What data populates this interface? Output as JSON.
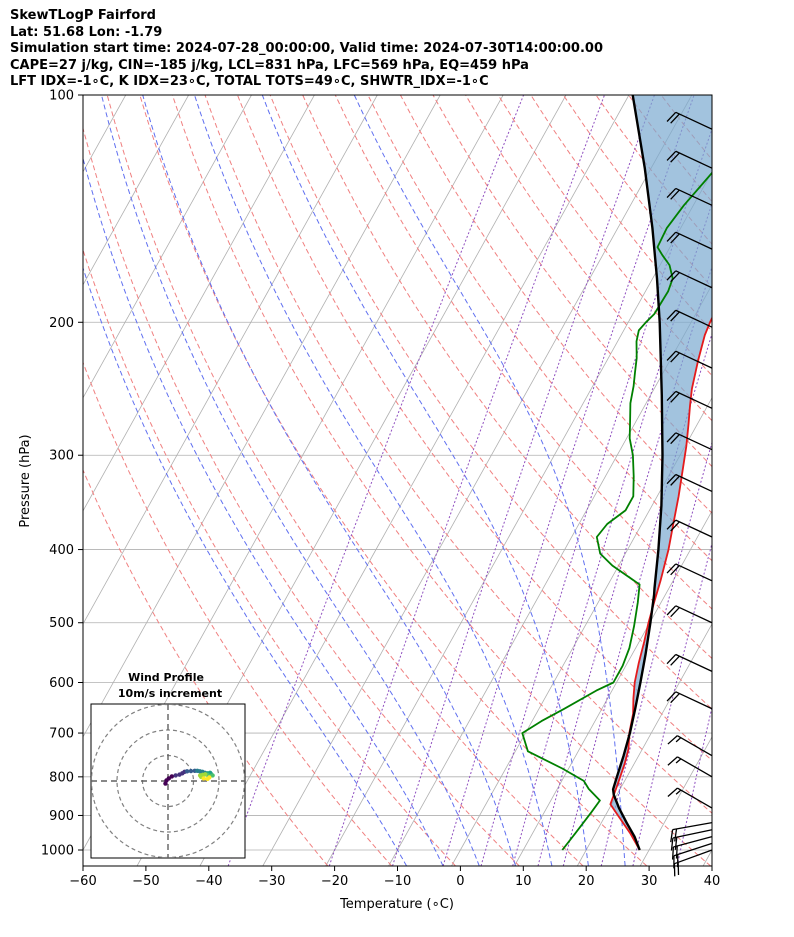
{
  "header": {
    "lines": [
      "SkewTLogP Fairford",
      "Lat: 51.68   Lon: -1.79",
      "Simulation start time: 2024-07-28_00:00:00, Valid time: 2024-07-30T14:00:00.00",
      "CAPE=27 j/kg, CIN=-185 j/kg, LCL=831 hPa, LFC=569 hPa, EQ=459 hPa",
      "LFT IDX=-1∘C, K IDX=23∘C, TOTAL TOTS=49∘C, SHWTR_IDX=-1∘C"
    ]
  },
  "chart_data": [
    {
      "type": "line",
      "subtype": "skewt-logp",
      "xlabel": "Temperature (∘C)",
      "ylabel": "Pressure (hPa)",
      "xlim": [
        -60,
        40
      ],
      "ylim": [
        1050,
        100
      ],
      "yscale": "log",
      "x_ticks": [
        -60,
        -50,
        -40,
        -30,
        -20,
        -10,
        0,
        10,
        20,
        30,
        40
      ],
      "x_tick_labels": [
        "−60",
        "−50",
        "−40",
        "−30",
        "−20",
        "−10",
        "0",
        "10",
        "20",
        "30",
        "40"
      ],
      "y_ticks": [
        1000,
        900,
        800,
        700,
        600,
        500,
        400,
        300,
        200,
        100
      ],
      "y_tick_labels": [
        "1000",
        "900",
        "800",
        "700",
        "600",
        "500",
        "400",
        "300",
        "200",
        "100"
      ],
      "grid": true,
      "dry_adiabats_K": [
        250,
        260,
        270,
        280,
        290,
        300,
        310,
        320,
        330,
        340,
        350,
        360,
        370,
        380,
        390,
        400,
        410,
        420,
        430,
        440,
        450,
        460
      ],
      "moist_adiabats_C": [
        -10,
        -4,
        2,
        8,
        14,
        20,
        26
      ],
      "mixing_ratio_lines_T1000_C": [
        -36,
        -20,
        -10,
        -2,
        4,
        9,
        13,
        17,
        23,
        28,
        35
      ],
      "temperature_profile": {
        "color": "#e41a1c",
        "points": [
          [
            28.5,
            1000
          ],
          [
            25.5,
            950
          ],
          [
            22.0,
            900
          ],
          [
            19.8,
            870
          ],
          [
            19.2,
            820
          ],
          [
            18.5,
            770
          ],
          [
            17.8,
            735
          ],
          [
            16.5,
            700
          ],
          [
            15.4,
            660
          ],
          [
            14.1,
            630
          ],
          [
            12.9,
            600
          ],
          [
            11.8,
            565
          ],
          [
            10.8,
            530
          ],
          [
            9.8,
            500
          ],
          [
            8.9,
            470
          ],
          [
            8.0,
            440
          ],
          [
            6.5,
            400
          ],
          [
            5.0,
            370
          ],
          [
            3.4,
            340
          ],
          [
            1.8,
            315
          ],
          [
            0.2,
            292
          ],
          [
            -1.4,
            273
          ],
          [
            -2.8,
            258
          ],
          [
            -4.0,
            245
          ],
          [
            -5.5,
            225
          ],
          [
            -6.7,
            208
          ],
          [
            -7.0,
            200
          ],
          [
            -7.2,
            190
          ],
          [
            -7.3,
            183
          ],
          [
            -7.4,
            178
          ],
          [
            -6.0,
            170
          ],
          [
            -3.0,
            158
          ],
          [
            -0.5,
            148
          ],
          [
            2.5,
            140
          ],
          [
            5.0,
            133
          ],
          [
            8.0,
            126
          ],
          [
            10.5,
            120
          ],
          [
            13.0,
            113
          ],
          [
            14.5,
            108
          ],
          [
            16.0,
            103
          ],
          [
            16.8,
            100
          ]
        ]
      },
      "dewpoint_profile": {
        "color": "#008000",
        "points": [
          [
            16.2,
            1000
          ],
          [
            16.8,
            950
          ],
          [
            17.5,
            890
          ],
          [
            17.8,
            860
          ],
          [
            15.0,
            830
          ],
          [
            13.5,
            810
          ],
          [
            9.0,
            780
          ],
          [
            2.0,
            740
          ],
          [
            -0.5,
            700
          ],
          [
            1.5,
            675
          ],
          [
            4.0,
            650
          ],
          [
            7.5,
            615
          ],
          [
            9.5,
            600
          ],
          [
            9.5,
            570
          ],
          [
            9.0,
            540
          ],
          [
            7.8,
            505
          ],
          [
            6.3,
            470
          ],
          [
            5.0,
            445
          ],
          [
            -1.0,
            420
          ],
          [
            -4.0,
            405
          ],
          [
            -6.0,
            385
          ],
          [
            -5.5,
            370
          ],
          [
            -3.8,
            355
          ],
          [
            -3.8,
            340
          ],
          [
            -5.5,
            320
          ],
          [
            -7.5,
            300
          ],
          [
            -9.5,
            285
          ],
          [
            -11.0,
            270
          ],
          [
            -12.5,
            256
          ],
          [
            -13.5,
            243
          ],
          [
            -14.5,
            233
          ],
          [
            -15.5,
            223
          ],
          [
            -17.0,
            212
          ],
          [
            -17.6,
            205
          ],
          [
            -17.2,
            200
          ],
          [
            -16.6,
            195
          ],
          [
            -16.5,
            188
          ],
          [
            -16.4,
            182
          ],
          [
            -16.8,
            175
          ],
          [
            -18.5,
            168
          ],
          [
            -20.5,
            163
          ],
          [
            -22.0,
            159
          ],
          [
            -22.2,
            150
          ],
          [
            -21.5,
            140
          ],
          [
            -20.3,
            130
          ],
          [
            -19.0,
            120
          ],
          [
            -17.2,
            110
          ],
          [
            -15.0,
            100
          ]
        ]
      },
      "parcel_profile": {
        "color": "#000000",
        "points": [
          [
            28.5,
            1000
          ],
          [
            26.5,
            960
          ],
          [
            24.0,
            920
          ],
          [
            21.5,
            880
          ],
          [
            19.5,
            845
          ],
          [
            18.9,
            831
          ],
          [
            18.4,
            800
          ],
          [
            17.6,
            750
          ],
          [
            16.6,
            700
          ],
          [
            15.3,
            650
          ],
          [
            13.8,
            600
          ],
          [
            12.1,
            550
          ],
          [
            10.1,
            500
          ],
          [
            8.2,
            459
          ],
          [
            7.7,
            450
          ],
          [
            4.9,
            400
          ],
          [
            1.5,
            350
          ],
          [
            -2.8,
            300
          ],
          [
            -8.2,
            250
          ],
          [
            -15.0,
            200
          ],
          [
            -19.3,
            175
          ],
          [
            -24.5,
            150
          ],
          [
            -31.0,
            125
          ],
          [
            -39.4,
            100
          ]
        ]
      },
      "lcl_hpa": 831,
      "lfc_hpa": 569,
      "eq_hpa": 459,
      "cape_fill_color": "#7aaad0",
      "wind_barbs": [
        {
          "p": 1000,
          "speed_kt": 20,
          "dir_deg": 250
        },
        {
          "p": 980,
          "speed_kt": 20,
          "dir_deg": 252
        },
        {
          "p": 960,
          "speed_kt": 20,
          "dir_deg": 255
        },
        {
          "p": 940,
          "speed_kt": 20,
          "dir_deg": 258
        },
        {
          "p": 920,
          "speed_kt": 20,
          "dir_deg": 260
        },
        {
          "p": 880,
          "speed_kt": 15,
          "dir_deg": 300
        },
        {
          "p": 800,
          "speed_kt": 15,
          "dir_deg": 300
        },
        {
          "p": 750,
          "speed_kt": 15,
          "dir_deg": 300
        },
        {
          "p": 650,
          "speed_kt": 20,
          "dir_deg": 295
        },
        {
          "p": 580,
          "speed_kt": 20,
          "dir_deg": 295
        },
        {
          "p": 500,
          "speed_kt": 20,
          "dir_deg": 295
        },
        {
          "p": 440,
          "speed_kt": 20,
          "dir_deg": 295
        },
        {
          "p": 385,
          "speed_kt": 20,
          "dir_deg": 295
        },
        {
          "p": 335,
          "speed_kt": 20,
          "dir_deg": 295
        },
        {
          "p": 295,
          "speed_kt": 20,
          "dir_deg": 295
        },
        {
          "p": 260,
          "speed_kt": 20,
          "dir_deg": 295
        },
        {
          "p": 230,
          "speed_kt": 20,
          "dir_deg": 295
        },
        {
          "p": 203,
          "speed_kt": 20,
          "dir_deg": 295
        },
        {
          "p": 180,
          "speed_kt": 20,
          "dir_deg": 295
        },
        {
          "p": 160,
          "speed_kt": 20,
          "dir_deg": 295
        },
        {
          "p": 140,
          "speed_kt": 20,
          "dir_deg": 295
        },
        {
          "p": 125,
          "speed_kt": 20,
          "dir_deg": 295
        },
        {
          "p": 111,
          "speed_kt": 20,
          "dir_deg": 295
        }
      ]
    },
    {
      "type": "scatter",
      "subtype": "hodograph",
      "title": "Wind Profile",
      "subtitle": "10m/s increment",
      "ring_spacing_ms": 10,
      "rings": 3,
      "points": [
        [
          -1,
          -1
        ],
        [
          -0.6,
          0.2
        ],
        [
          0.3,
          1.0
        ],
        [
          1.5,
          1.8
        ],
        [
          3.0,
          2.2
        ],
        [
          4.5,
          2.5
        ],
        [
          5.6,
          3.0
        ],
        [
          6.5,
          3.6
        ],
        [
          7.5,
          3.8
        ],
        [
          9.0,
          3.9
        ],
        [
          10.5,
          4.0
        ],
        [
          11.5,
          4.0
        ],
        [
          12.5,
          3.8
        ],
        [
          13.5,
          3.6
        ],
        [
          14.5,
          3.2
        ],
        [
          15.5,
          3.0
        ],
        [
          16.0,
          2.8
        ],
        [
          16.5,
          3.2
        ],
        [
          16.8,
          2.8
        ],
        [
          17.5,
          2.2
        ],
        [
          16.4,
          2.0
        ],
        [
          15.5,
          2.4
        ],
        [
          14.6,
          2.6
        ],
        [
          13.6,
          2.4
        ],
        [
          12.6,
          2.2
        ],
        [
          13.0,
          1.6
        ],
        [
          14.0,
          1.0
        ],
        [
          15.5,
          0.8
        ],
        [
          16.2,
          1.4
        ]
      ],
      "colormap": "viridis"
    }
  ]
}
